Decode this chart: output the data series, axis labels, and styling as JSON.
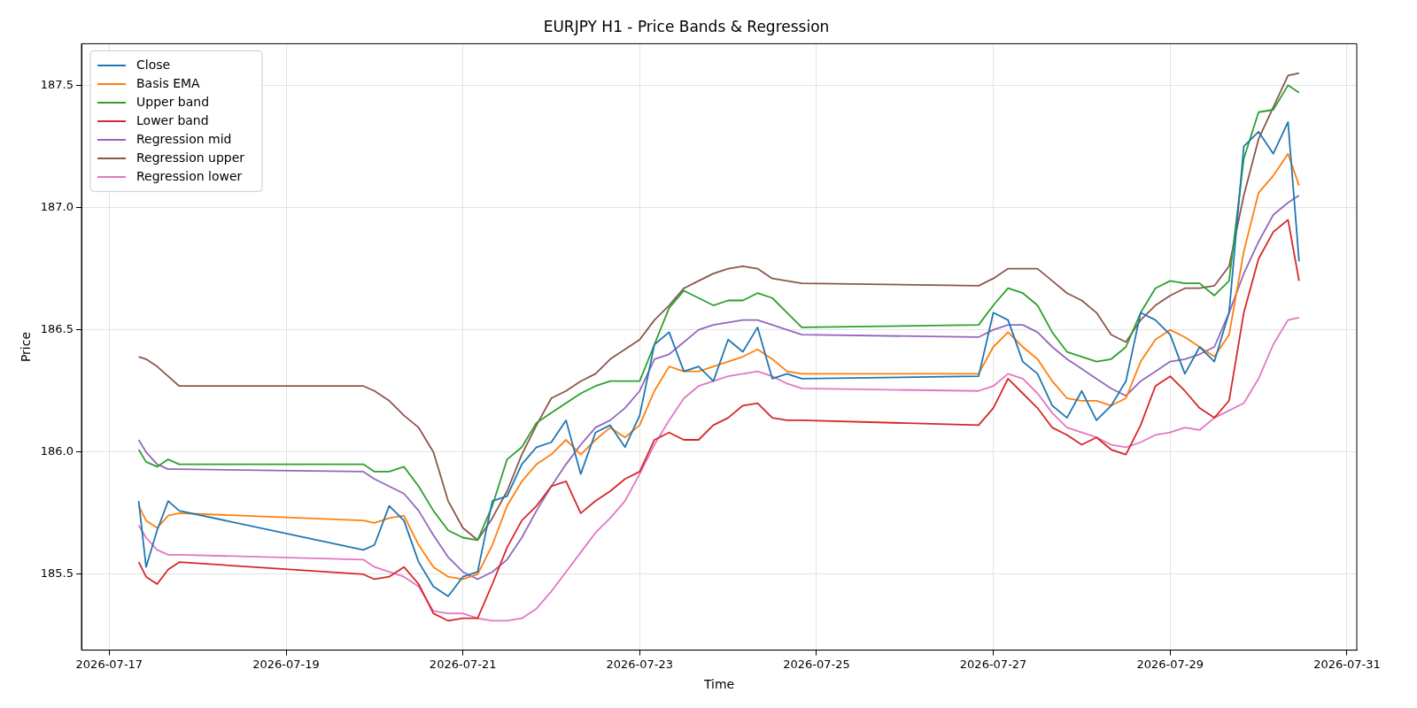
{
  "chart_data": {
    "type": "line",
    "title": "EURJPY H1 - Price Bands & Regression",
    "xlabel": "Time",
    "ylabel": "Price",
    "x": [
      "2026-07-17T08:00",
      "2026-07-17T10:00",
      "2026-07-17T13:00",
      "2026-07-17T16:00",
      "2026-07-17T19:00",
      "2026-07-19T21:00",
      "2026-07-20T00:00",
      "2026-07-20T04:00",
      "2026-07-20T08:00",
      "2026-07-20T12:00",
      "2026-07-20T16:00",
      "2026-07-20T20:00",
      "2026-07-21T00:00",
      "2026-07-21T04:00",
      "2026-07-21T08:00",
      "2026-07-21T12:00",
      "2026-07-21T16:00",
      "2026-07-21T20:00",
      "2026-07-22T00:00",
      "2026-07-22T04:00",
      "2026-07-22T08:00",
      "2026-07-22T12:00",
      "2026-07-22T16:00",
      "2026-07-22T20:00",
      "2026-07-23T00:00",
      "2026-07-23T04:00",
      "2026-07-23T08:00",
      "2026-07-23T12:00",
      "2026-07-23T16:00",
      "2026-07-23T20:00",
      "2026-07-24T00:00",
      "2026-07-24T04:00",
      "2026-07-24T08:00",
      "2026-07-24T12:00",
      "2026-07-24T16:00",
      "2026-07-24T20:00",
      "2026-07-26T20:00",
      "2026-07-27T00:00",
      "2026-07-27T04:00",
      "2026-07-27T08:00",
      "2026-07-27T12:00",
      "2026-07-27T16:00",
      "2026-07-27T20:00",
      "2026-07-28T00:00",
      "2026-07-28T04:00",
      "2026-07-28T08:00",
      "2026-07-28T12:00",
      "2026-07-28T16:00",
      "2026-07-28T20:00",
      "2026-07-29T00:00",
      "2026-07-29T04:00",
      "2026-07-29T08:00",
      "2026-07-29T12:00",
      "2026-07-29T16:00",
      "2026-07-29T20:00",
      "2026-07-30T00:00",
      "2026-07-30T04:00",
      "2026-07-30T08:00",
      "2026-07-30T11:00"
    ],
    "series": [
      {
        "name": "Close",
        "color": "#1f77b4",
        "values": [
          185.8,
          185.53,
          185.68,
          185.8,
          185.76,
          185.6,
          185.62,
          185.78,
          185.72,
          185.55,
          185.45,
          185.41,
          185.49,
          185.51,
          185.8,
          185.82,
          185.95,
          186.02,
          186.04,
          186.13,
          185.91,
          186.08,
          186.11,
          186.02,
          186.15,
          186.44,
          186.49,
          186.33,
          186.35,
          186.29,
          186.46,
          186.41,
          186.51,
          186.3,
          186.32,
          186.3,
          186.31,
          186.57,
          186.54,
          186.37,
          186.32,
          186.19,
          186.14,
          186.25,
          186.13,
          186.19,
          186.29,
          186.57,
          186.54,
          186.48,
          186.32,
          186.43,
          186.37,
          186.57,
          187.25,
          187.31,
          187.22,
          187.35,
          186.78
        ]
      },
      {
        "name": "Basis EMA",
        "color": "#ff7f0e",
        "values": [
          185.78,
          185.72,
          185.69,
          185.74,
          185.75,
          185.72,
          185.71,
          185.73,
          185.74,
          185.62,
          185.53,
          185.49,
          185.48,
          185.5,
          185.62,
          185.78,
          185.88,
          185.95,
          185.99,
          186.05,
          185.99,
          186.05,
          186.1,
          186.06,
          186.11,
          186.25,
          186.35,
          186.33,
          186.33,
          186.35,
          186.37,
          186.39,
          186.42,
          186.38,
          186.33,
          186.32,
          186.32,
          186.43,
          186.49,
          186.43,
          186.38,
          186.29,
          186.22,
          186.21,
          186.21,
          186.19,
          186.22,
          186.37,
          186.46,
          186.5,
          186.47,
          186.43,
          186.39,
          186.48,
          186.82,
          187.06,
          187.13,
          187.22,
          187.09
        ]
      },
      {
        "name": "Upper band",
        "color": "#2ca02c",
        "values": [
          186.01,
          185.96,
          185.94,
          185.97,
          185.95,
          185.95,
          185.92,
          185.92,
          185.94,
          185.86,
          185.76,
          185.68,
          185.65,
          185.64,
          185.78,
          185.97,
          186.02,
          186.12,
          186.16,
          186.2,
          186.24,
          186.27,
          186.29,
          186.29,
          186.29,
          186.44,
          186.59,
          186.66,
          186.63,
          186.6,
          186.62,
          186.62,
          186.65,
          186.63,
          186.57,
          186.51,
          186.52,
          186.6,
          186.67,
          186.65,
          186.6,
          186.49,
          186.41,
          186.39,
          186.37,
          186.38,
          186.43,
          186.57,
          186.67,
          186.7,
          186.69,
          186.69,
          186.64,
          186.7,
          187.2,
          187.39,
          187.4,
          187.5,
          187.47
        ]
      },
      {
        "name": "Lower band",
        "color": "#d62728",
        "values": [
          185.55,
          185.49,
          185.46,
          185.52,
          185.55,
          185.5,
          185.48,
          185.49,
          185.53,
          185.46,
          185.34,
          185.31,
          185.32,
          185.32,
          185.46,
          185.61,
          185.72,
          185.78,
          185.86,
          185.88,
          185.75,
          185.8,
          185.84,
          185.89,
          185.92,
          186.05,
          186.08,
          186.05,
          186.05,
          186.11,
          186.14,
          186.19,
          186.2,
          186.14,
          186.13,
          186.13,
          186.11,
          186.18,
          186.3,
          186.24,
          186.18,
          186.1,
          186.07,
          186.03,
          186.06,
          186.01,
          185.99,
          186.11,
          186.27,
          186.31,
          186.25,
          186.18,
          186.14,
          186.21,
          186.57,
          186.79,
          186.9,
          186.95,
          186.7
        ]
      },
      {
        "name": "Regression mid",
        "color": "#9467bd",
        "values": [
          186.05,
          186.0,
          185.95,
          185.93,
          185.93,
          185.92,
          185.89,
          185.86,
          185.83,
          185.76,
          185.66,
          185.57,
          185.51,
          185.48,
          185.51,
          185.56,
          185.65,
          185.76,
          185.86,
          185.95,
          186.03,
          186.1,
          186.13,
          186.18,
          186.25,
          186.38,
          186.4,
          186.45,
          186.5,
          186.52,
          186.53,
          186.54,
          186.54,
          186.52,
          186.5,
          186.48,
          186.47,
          186.5,
          186.52,
          186.52,
          186.49,
          186.43,
          186.38,
          186.34,
          186.3,
          186.26,
          186.23,
          186.29,
          186.33,
          186.37,
          186.38,
          186.4,
          186.43,
          186.57,
          186.73,
          186.86,
          186.97,
          187.02,
          187.05
        ]
      },
      {
        "name": "Regression upper",
        "color": "#8c564b",
        "values": [
          186.39,
          186.38,
          186.35,
          186.31,
          186.27,
          186.27,
          186.25,
          186.21,
          186.15,
          186.1,
          186.0,
          185.8,
          185.69,
          185.64,
          185.73,
          185.84,
          185.99,
          186.11,
          186.22,
          186.25,
          186.29,
          186.32,
          186.38,
          186.42,
          186.46,
          186.54,
          186.6,
          186.67,
          186.7,
          186.73,
          186.75,
          186.76,
          186.75,
          186.71,
          186.7,
          186.69,
          186.68,
          186.71,
          186.75,
          186.75,
          186.75,
          186.7,
          186.65,
          186.62,
          186.57,
          186.48,
          186.45,
          186.54,
          186.6,
          186.64,
          186.67,
          186.67,
          186.68,
          186.76,
          187.05,
          187.28,
          187.41,
          187.54,
          187.55
        ]
      },
      {
        "name": "Regression lower",
        "color": "#e377c2",
        "values": [
          185.7,
          185.65,
          185.6,
          185.58,
          185.58,
          185.56,
          185.53,
          185.51,
          185.49,
          185.45,
          185.35,
          185.34,
          185.34,
          185.32,
          185.31,
          185.31,
          185.32,
          185.36,
          185.43,
          185.51,
          185.59,
          185.67,
          185.73,
          185.8,
          185.91,
          186.03,
          186.13,
          186.22,
          186.27,
          186.29,
          186.31,
          186.32,
          186.33,
          186.31,
          186.28,
          186.26,
          186.25,
          186.27,
          186.32,
          186.3,
          186.24,
          186.16,
          186.1,
          186.08,
          186.06,
          186.03,
          186.02,
          186.04,
          186.07,
          186.08,
          186.1,
          186.09,
          186.14,
          186.17,
          186.2,
          186.3,
          186.44,
          186.54,
          186.55
        ]
      }
    ],
    "xlim": [
      "2026-07-16T16:28",
      "2026-07-31T02:40"
    ],
    "xticks": [
      "2026-07-17",
      "2026-07-19",
      "2026-07-21",
      "2026-07-23",
      "2026-07-25",
      "2026-07-27",
      "2026-07-29",
      "2026-07-31"
    ],
    "ylim": [
      185.19,
      187.67
    ],
    "yticks": [
      185.5,
      {
        "value": 186.0,
        "label": "186.0"
      },
      186.5,
      {
        "value": 187.0,
        "label": "187.0"
      },
      187.5
    ],
    "grid": true,
    "legend": "top left",
    "line_style": "solid",
    "marker": "none"
  }
}
